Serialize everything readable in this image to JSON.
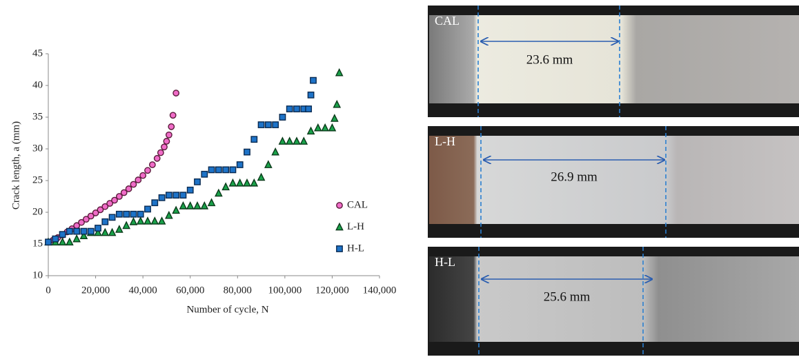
{
  "chart_data": {
    "type": "scatter",
    "xlabel": "Number of cycle, N",
    "ylabel": "Crack length, a (mm)",
    "xlim": [
      0,
      140000
    ],
    "xticks": [
      0,
      {
        "value": 20000,
        "label": "20,000"
      },
      {
        "value": 40000,
        "label": "40,000"
      },
      {
        "value": 60000,
        "label": "60,000"
      },
      {
        "value": 80000,
        "label": "80,000"
      },
      {
        "value": 100000,
        "label": "100,000"
      },
      {
        "value": 120000,
        "label": "120,000"
      },
      {
        "value": 140000,
        "label": "140,000"
      }
    ],
    "ylim": [
      10,
      45
    ],
    "yticks": [
      10,
      15,
      20,
      25,
      30,
      35,
      40,
      45
    ],
    "legend": "right",
    "series": [
      {
        "name": "CAL",
        "color": "#f06cc8",
        "marker": "circle",
        "x": [
          0,
          2000,
          4000,
          6000,
          8000,
          10000,
          12000,
          14000,
          16000,
          18000,
          20000,
          22000,
          24000,
          26000,
          28000,
          30000,
          32000,
          34000,
          36000,
          38000,
          40000,
          42000,
          44000,
          46000,
          47500,
          49000,
          50000,
          51000,
          52000,
          52700,
          54000
        ],
        "values": [
          15.3,
          15.6,
          16,
          16.4,
          16.9,
          17.4,
          17.9,
          18.4,
          18.9,
          19.4,
          19.9,
          20.4,
          20.9,
          21.4,
          21.9,
          22.5,
          23.1,
          23.7,
          24.4,
          25.1,
          25.8,
          26.6,
          27.5,
          28.5,
          29.4,
          30.3,
          31.2,
          32.2,
          33.5,
          35.3,
          38.8
        ]
      },
      {
        "name": "L-H",
        "color": "#1aa24a",
        "marker": "triangle",
        "x": [
          0,
          3000,
          6000,
          9000,
          12000,
          15000,
          18000,
          21000,
          24000,
          27000,
          30000,
          33000,
          36000,
          39000,
          42000,
          45000,
          48000,
          51000,
          54000,
          57000,
          60000,
          63000,
          66000,
          69000,
          72000,
          75000,
          78000,
          81000,
          84000,
          87000,
          90000,
          93000,
          96000,
          99000,
          102000,
          105000,
          108000,
          111000,
          114000,
          117000,
          120000,
          121000,
          122000,
          123000
        ],
        "values": [
          15.3,
          15.3,
          15.3,
          15.3,
          15.8,
          16.3,
          16.8,
          16.8,
          16.8,
          16.8,
          17.3,
          17.9,
          18.5,
          18.6,
          18.6,
          18.6,
          18.6,
          19.5,
          20.3,
          21,
          21,
          21,
          21,
          21.5,
          23,
          24,
          24.6,
          24.6,
          24.6,
          24.6,
          25.5,
          27.5,
          29.5,
          31.2,
          31.2,
          31.2,
          31.2,
          32.8,
          33.3,
          33.3,
          33.3,
          34.8,
          37,
          42
        ]
      },
      {
        "name": "H-L",
        "color": "#1e73c8",
        "marker": "square",
        "x": [
          0,
          3000,
          6000,
          9000,
          12000,
          15000,
          18000,
          21000,
          24000,
          27000,
          30000,
          33000,
          36000,
          39000,
          42000,
          45000,
          48000,
          51000,
          54000,
          57000,
          60000,
          63000,
          66000,
          69000,
          72000,
          75000,
          78000,
          81000,
          84000,
          87000,
          90000,
          93000,
          96000,
          99000,
          102000,
          105000,
          108000,
          110000,
          111000,
          112000
        ],
        "values": [
          15.3,
          15.8,
          16.5,
          17,
          17,
          17,
          17,
          17.5,
          18.5,
          19.2,
          19.7,
          19.7,
          19.7,
          19.7,
          20.5,
          21.5,
          22.3,
          22.7,
          22.7,
          22.7,
          23.5,
          24.8,
          26,
          26.7,
          26.7,
          26.7,
          26.7,
          27.5,
          29.5,
          31.5,
          33.8,
          33.8,
          33.8,
          35,
          36.3,
          36.3,
          36.3,
          36.3,
          38.5,
          40.8
        ]
      }
    ]
  },
  "photos": [
    {
      "label": "CAL",
      "measure": "23.6 mm"
    },
    {
      "label": "L-H",
      "measure": "26.9 mm"
    },
    {
      "label": "H-L",
      "measure": "25.6 mm"
    }
  ]
}
